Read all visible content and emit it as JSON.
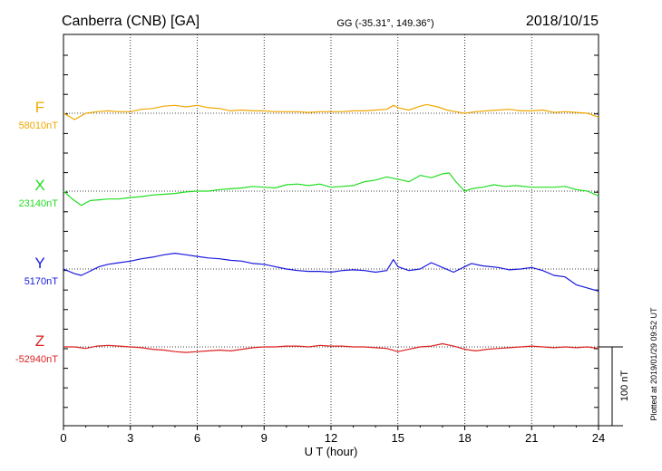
{
  "header": {
    "station": "Canberra (CNB)  [GA]",
    "coords": "GG (-35.31°, 149.36°)",
    "date": "2018/10/15"
  },
  "side_note": "Plotted at 2019/01/29 09:52 UT",
  "scale_bar": {
    "label": "100 nT",
    "value_nT": 100
  },
  "chart_data": {
    "type": "line",
    "title": "Canberra (CNB)  [GA]",
    "xlabel": "U T (hour)",
    "ylabel": "",
    "xlim": [
      0,
      24
    ],
    "x_ticks": [
      "0",
      "3",
      "6",
      "9",
      "12",
      "15",
      "18",
      "21",
      "24"
    ],
    "grid": true,
    "series": [
      {
        "name": "F",
        "baseline_label": "58010nT",
        "baseline_nT": 58010,
        "color": "#f0a800",
        "x": [
          0,
          0.5,
          1,
          1.5,
          2,
          2.5,
          3,
          3.5,
          4,
          4.5,
          5,
          5.5,
          6,
          6.5,
          7,
          7.5,
          8,
          8.5,
          9,
          9.5,
          10,
          10.5,
          11,
          11.5,
          12,
          12.5,
          13,
          13.5,
          14,
          14.5,
          14.8,
          15,
          15.5,
          16,
          16.3,
          16.8,
          17.2,
          17.6,
          18,
          18.5,
          19,
          19.5,
          20,
          20.5,
          21,
          21.5,
          22,
          22.5,
          23,
          23.5,
          24
        ],
        "y": [
          0,
          -8,
          0,
          2,
          3,
          2,
          2,
          5,
          6,
          9,
          10,
          8,
          10,
          7,
          6,
          3,
          4,
          3,
          3,
          2,
          2,
          2,
          1,
          2,
          2,
          2,
          3,
          3,
          4,
          5,
          10,
          7,
          4,
          9,
          11,
          8,
          4,
          2,
          0,
          2,
          3,
          4,
          5,
          3,
          3,
          4,
          1,
          2,
          1,
          0,
          -5
        ]
      },
      {
        "name": "X",
        "baseline_label": "23140nT",
        "baseline_nT": 23140,
        "color": "#22dd22",
        "x": [
          0,
          0.4,
          0.8,
          1.2,
          1.6,
          2,
          2.5,
          3,
          3.5,
          4,
          4.5,
          5,
          5.5,
          6,
          6.5,
          7,
          7.5,
          8,
          8.5,
          9,
          9.5,
          10,
          10.5,
          11,
          11.5,
          12,
          12.5,
          13,
          13.5,
          14,
          14.5,
          15,
          15.5,
          16,
          16.5,
          17,
          17.3,
          17.6,
          18,
          18.3,
          18.8,
          19.3,
          19.8,
          20.3,
          21,
          21.5,
          22,
          22.5,
          23,
          23.5,
          24
        ],
        "y": [
          0,
          -10,
          -18,
          -12,
          -11,
          -10,
          -10,
          -8,
          -7,
          -5,
          -4,
          -3,
          -1,
          0,
          0,
          2,
          3,
          4,
          6,
          5,
          4,
          8,
          9,
          7,
          9,
          5,
          6,
          7,
          12,
          14,
          18,
          15,
          12,
          20,
          17,
          22,
          23,
          12,
          0,
          3,
          5,
          8,
          6,
          7,
          5,
          5,
          5,
          6,
          2,
          0,
          -6
        ]
      },
      {
        "name": "Y",
        "baseline_label": "5170nT",
        "baseline_nT": 5170,
        "color": "#1818dd",
        "x": [
          0,
          0.5,
          0.8,
          1.1,
          1.6,
          2,
          2.5,
          3,
          3.5,
          4,
          4.5,
          5,
          5.5,
          6,
          6.5,
          7,
          7.5,
          8,
          8.5,
          9,
          9.5,
          10,
          10.5,
          11,
          11.5,
          12,
          12.5,
          13,
          13.5,
          14,
          14.5,
          14.8,
          15,
          15.5,
          16,
          16.5,
          17,
          17.5,
          18,
          18.3,
          18.8,
          19.5,
          20,
          20.5,
          21,
          21.5,
          22,
          22.5,
          23,
          23.5,
          24
        ],
        "y": [
          0,
          -6,
          -8,
          -4,
          3,
          6,
          8,
          10,
          13,
          15,
          18,
          20,
          18,
          16,
          14,
          13,
          11,
          10,
          7,
          6,
          3,
          0,
          -2,
          -3,
          -3,
          -4,
          -2,
          -1,
          -2,
          -4,
          -2,
          12,
          3,
          -2,
          0,
          8,
          2,
          -4,
          3,
          7,
          4,
          2,
          -1,
          0,
          2,
          -2,
          -8,
          -10,
          -20,
          -24,
          -28
        ]
      },
      {
        "name": "Z",
        "baseline_label": "-52940nT",
        "baseline_nT": -52940,
        "color": "#dd2222",
        "x": [
          0,
          0.5,
          1,
          1.5,
          2,
          2.5,
          3,
          3.5,
          4,
          4.5,
          5,
          5.5,
          6,
          6.5,
          7,
          7.5,
          8,
          8.5,
          9,
          9.5,
          10,
          10.5,
          11,
          11.5,
          12,
          12.5,
          13,
          13.5,
          14,
          14.5,
          15,
          15.5,
          16,
          16.5,
          17,
          17.5,
          18,
          18.5,
          19,
          19.5,
          20,
          20.5,
          21,
          21.5,
          22,
          22.5,
          23,
          23.5,
          24
        ],
        "y": [
          0,
          0,
          -2,
          1,
          2,
          1,
          0,
          -1,
          -3,
          -4,
          -6,
          -7,
          -6,
          -5,
          -4,
          -5,
          -3,
          -1,
          0,
          0,
          1,
          1,
          0,
          2,
          1,
          1,
          0,
          0,
          -1,
          -2,
          -6,
          -3,
          0,
          1,
          4,
          1,
          -3,
          -5,
          -3,
          -2,
          -1,
          0,
          1,
          0,
          -1,
          0,
          -1,
          0,
          -2
        ]
      }
    ]
  }
}
